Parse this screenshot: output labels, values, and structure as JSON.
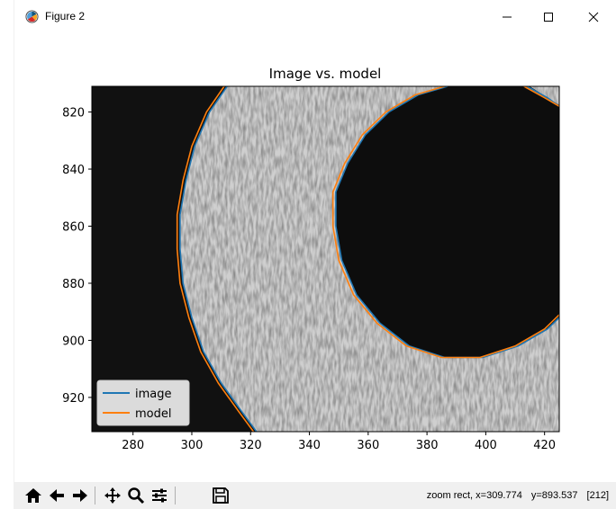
{
  "window": {
    "title": "Figure 2",
    "controls": {
      "minimize": "minimize-icon",
      "maximize": "maximize-icon",
      "close": "close-icon"
    }
  },
  "figure": {
    "title": "Image vs. model",
    "x_ticks": [
      "280",
      "300",
      "320",
      "340",
      "360",
      "380",
      "400",
      "420"
    ],
    "y_ticks": [
      "820",
      "840",
      "860",
      "880",
      "900",
      "920"
    ],
    "legend": [
      {
        "label": "image",
        "color": "#1f77b4"
      },
      {
        "label": "model",
        "color": "#ff7f0e"
      }
    ]
  },
  "chart_data": {
    "type": "line",
    "title": "Image vs. model",
    "xlim": [
      266,
      425
    ],
    "ylim": [
      932,
      811
    ],
    "y_inverted": true,
    "x_ticks": [
      280,
      300,
      320,
      340,
      360,
      380,
      400,
      420
    ],
    "y_ticks": [
      820,
      840,
      860,
      880,
      900,
      920
    ],
    "legend_position": "lower-left",
    "series": [
      {
        "name": "image",
        "color": "#1f77b4",
        "contours": [
          [
            [
              312,
              811
            ],
            [
              306,
              820
            ],
            [
              301,
              832
            ],
            [
              298,
              844
            ],
            [
              296,
              856
            ],
            [
              296,
              868
            ],
            [
              297,
              880
            ],
            [
              300,
              892
            ],
            [
              304,
              904
            ],
            [
              310,
              915
            ],
            [
              317,
              925
            ],
            [
              322,
              932
            ]
          ],
          [
            [
              349,
              860
            ],
            [
              349,
              848
            ],
            [
              353,
              838
            ],
            [
              359,
              828
            ],
            [
              367,
              820
            ],
            [
              377,
              814
            ],
            [
              387,
              811
            ]
          ],
          [
            [
              349,
              860
            ],
            [
              351,
              872
            ],
            [
              356,
              884
            ],
            [
              364,
              894
            ],
            [
              374,
              902
            ],
            [
              386,
              906
            ],
            [
              399,
              906
            ],
            [
              411,
              902
            ],
            [
              421,
              896
            ],
            [
              425,
              892
            ]
          ],
          [
            [
              414,
              811
            ],
            [
              421,
              815
            ],
            [
              425,
              818
            ]
          ]
        ]
      },
      {
        "name": "model",
        "color": "#ff7f0e",
        "contours": [
          [
            [
              311,
              811
            ],
            [
              305,
              820
            ],
            [
              300,
              832
            ],
            [
              297,
              844
            ],
            [
              295,
              856
            ],
            [
              295,
              868
            ],
            [
              296,
              880
            ],
            [
              299,
              892
            ],
            [
              303,
              904
            ],
            [
              309,
              915
            ],
            [
              316,
              925
            ],
            [
              321,
              932
            ]
          ],
          [
            [
              348,
              860
            ],
            [
              348,
              848
            ],
            [
              352,
              838
            ],
            [
              358,
              828
            ],
            [
              366,
              820
            ],
            [
              376,
              814
            ],
            [
              386,
              811
            ]
          ],
          [
            [
              348,
              860
            ],
            [
              350,
              872
            ],
            [
              355,
              884
            ],
            [
              363,
              894
            ],
            [
              373,
              902
            ],
            [
              385,
              906
            ],
            [
              398,
              906
            ],
            [
              410,
              902
            ],
            [
              420,
              896
            ],
            [
              425,
              891
            ]
          ],
          [
            [
              413,
              811
            ],
            [
              420,
              815
            ],
            [
              425,
              818
            ]
          ]
        ]
      }
    ],
    "image_layers": {
      "ring_outer_edge": [
        [
          312,
          811
        ],
        [
          306,
          820
        ],
        [
          301,
          832
        ],
        [
          298,
          844
        ],
        [
          296,
          856
        ],
        [
          296,
          868
        ],
        [
          297,
          880
        ],
        [
          300,
          892
        ],
        [
          304,
          904
        ],
        [
          310,
          915
        ],
        [
          317,
          925
        ],
        [
          322,
          932
        ]
      ],
      "hole_edge": [
        [
          387,
          811
        ],
        [
          377,
          814
        ],
        [
          367,
          820
        ],
        [
          359,
          828
        ],
        [
          353,
          838
        ],
        [
          349,
          848
        ],
        [
          349,
          860
        ],
        [
          351,
          872
        ],
        [
          356,
          884
        ],
        [
          364,
          894
        ],
        [
          374,
          902
        ],
        [
          386,
          906
        ],
        [
          399,
          906
        ],
        [
          411,
          902
        ],
        [
          421,
          896
        ],
        [
          425,
          892
        ]
      ],
      "hole_right_top": [
        [
          414,
          811
        ],
        [
          425,
          818
        ]
      ]
    }
  },
  "toolbar": {
    "buttons": [
      "home-icon",
      "back-icon",
      "forward-icon",
      "pan-icon",
      "zoom-icon",
      "configure-icon",
      "save-icon"
    ],
    "status_mode": "zoom rect, x=309.774",
    "status_y": "y=893.537",
    "status_value": "[212]"
  }
}
